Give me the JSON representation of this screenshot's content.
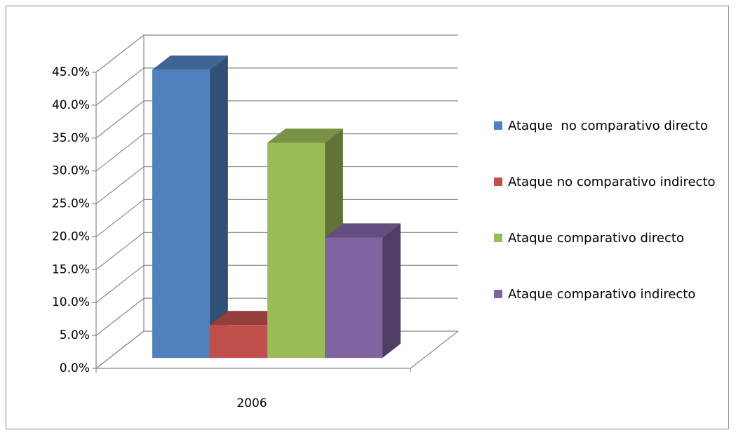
{
  "chart_data": {
    "type": "bar3d",
    "categories": [
      "2006"
    ],
    "series": [
      {
        "name": "Ataque  no comparativo directo",
        "color": "#4f81bd",
        "values": [
          43.8
        ]
      },
      {
        "name": "Ataque no comparativo indirecto",
        "color": "#c0504d",
        "values": [
          5.0
        ]
      },
      {
        "name": "Ataque comparativo directo",
        "color": "#9bbb59",
        "values": [
          32.7
        ]
      },
      {
        "name": "Ataque comparativo indirecto",
        "color": "#8064a2",
        "values": [
          18.3
        ]
      }
    ],
    "ylim": [
      0,
      45
    ],
    "yticks": [
      {
        "value": 0,
        "label": "0.0%"
      },
      {
        "value": 5,
        "label": "5.0%"
      },
      {
        "value": 10,
        "label": "10.0%"
      },
      {
        "value": 15,
        "label": "15.0%"
      },
      {
        "value": 20,
        "label": "20.0%"
      },
      {
        "value": 25,
        "label": "25.0%"
      },
      {
        "value": 30,
        "label": "30.0%"
      },
      {
        "value": 35,
        "label": "35.0%"
      },
      {
        "value": 40,
        "label": "40.0%"
      },
      {
        "value": 45,
        "label": "45.0%"
      }
    ],
    "grid": true,
    "legend": "right"
  }
}
